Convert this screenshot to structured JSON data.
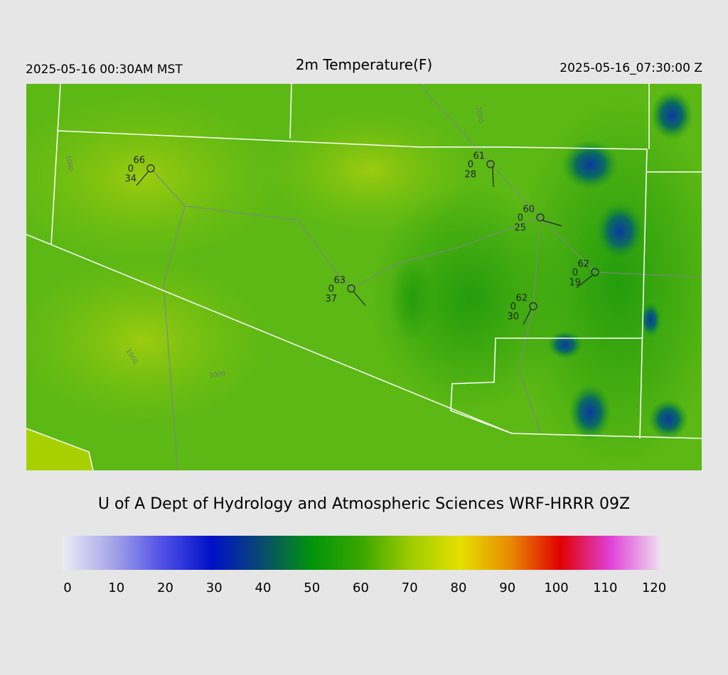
{
  "header": {
    "local_time": "2025-05-16 00:30AM MST",
    "title": "2m Temperature(F)",
    "utc_time": "2025-05-16_07:30:00 Z"
  },
  "map": {
    "stations": [
      {
        "temperature": 66,
        "pressure": 0,
        "dewpoint": 34
      },
      {
        "temperature": 61,
        "pressure": 0,
        "dewpoint": 28
      },
      {
        "temperature": 60,
        "pressure": 0,
        "dewpoint": 25
      },
      {
        "temperature": 62,
        "pressure": 0,
        "dewpoint": 19
      },
      {
        "temperature": 63,
        "pressure": 0,
        "dewpoint": 37
      },
      {
        "temperature": 62,
        "pressure": 0,
        "dewpoint": 30
      }
    ],
    "contour_labels": [
      1000,
      2000,
      1000,
      2000
    ]
  },
  "footer": "U of A Dept of Hydrology and Atmospheric Sciences WRF-HRRR 09Z",
  "colorbar": {
    "range": [
      0,
      120
    ],
    "ticks": [
      0,
      10,
      20,
      30,
      40,
      50,
      60,
      70,
      80,
      90,
      100,
      110,
      120
    ],
    "colors": [
      "#ececf6",
      "#a6a6e8",
      "#5050e6",
      "#0010c8",
      "#0a4a70",
      "#00940a",
      "#3aa600",
      "#9ecc00",
      "#e6e000",
      "#e88a00",
      "#e00000",
      "#e040d8",
      "#eedcee"
    ]
  }
}
